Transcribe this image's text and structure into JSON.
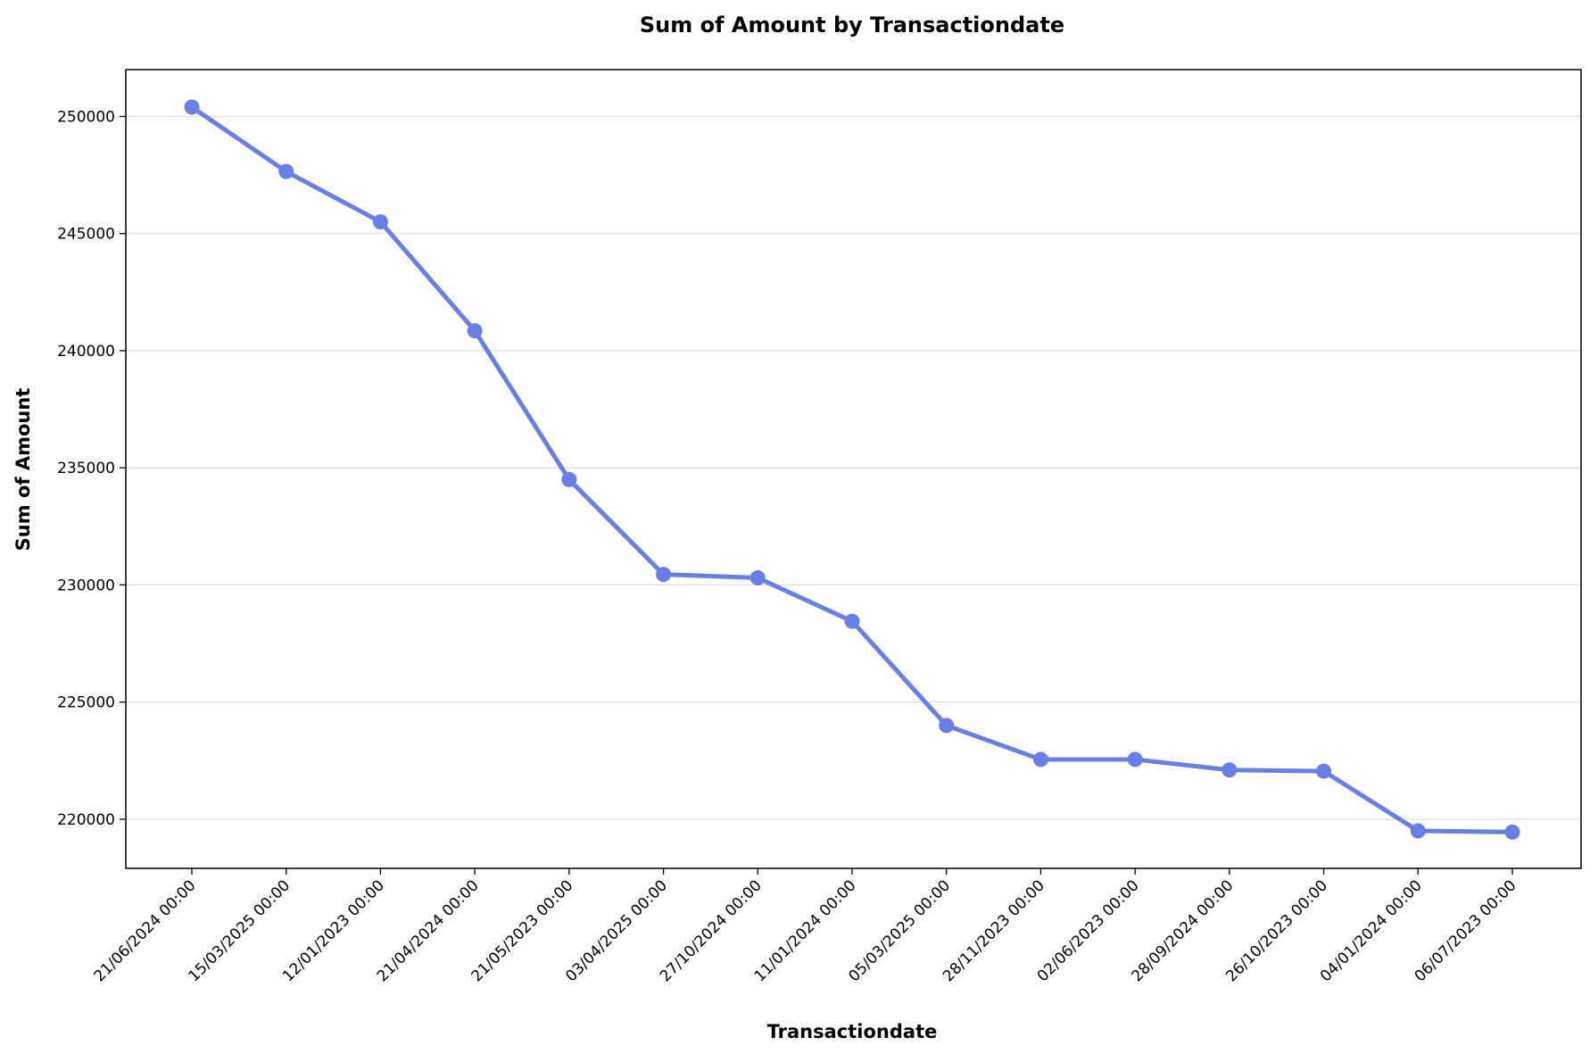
{
  "chart_data": {
    "type": "line",
    "title": "Sum of Amount by Transactiondate",
    "xlabel": "Transactiondate",
    "ylabel": "Sum of Amount",
    "categories": [
      "21/06/2024 00:00",
      "15/03/2025 00:00",
      "12/01/2023 00:00",
      "21/04/2024 00:00",
      "21/05/2023 00:00",
      "03/04/2025 00:00",
      "27/10/2024 00:00",
      "11/01/2024 00:00",
      "05/03/2025 00:00",
      "28/11/2023 00:00",
      "02/06/2023 00:00",
      "28/09/2024 00:00",
      "26/10/2023 00:00",
      "04/01/2024 00:00",
      "06/07/2023 00:00"
    ],
    "values": [
      250400,
      247650,
      245500,
      240850,
      234500,
      230450,
      230300,
      228450,
      224000,
      222550,
      222550,
      222100,
      222050,
      219500,
      219450
    ],
    "ylim": [
      217900,
      252000
    ],
    "yticks": [
      220000,
      225000,
      230000,
      235000,
      240000,
      245000,
      250000
    ],
    "grid": "horizontal",
    "line_color": "#6a7fe6"
  }
}
